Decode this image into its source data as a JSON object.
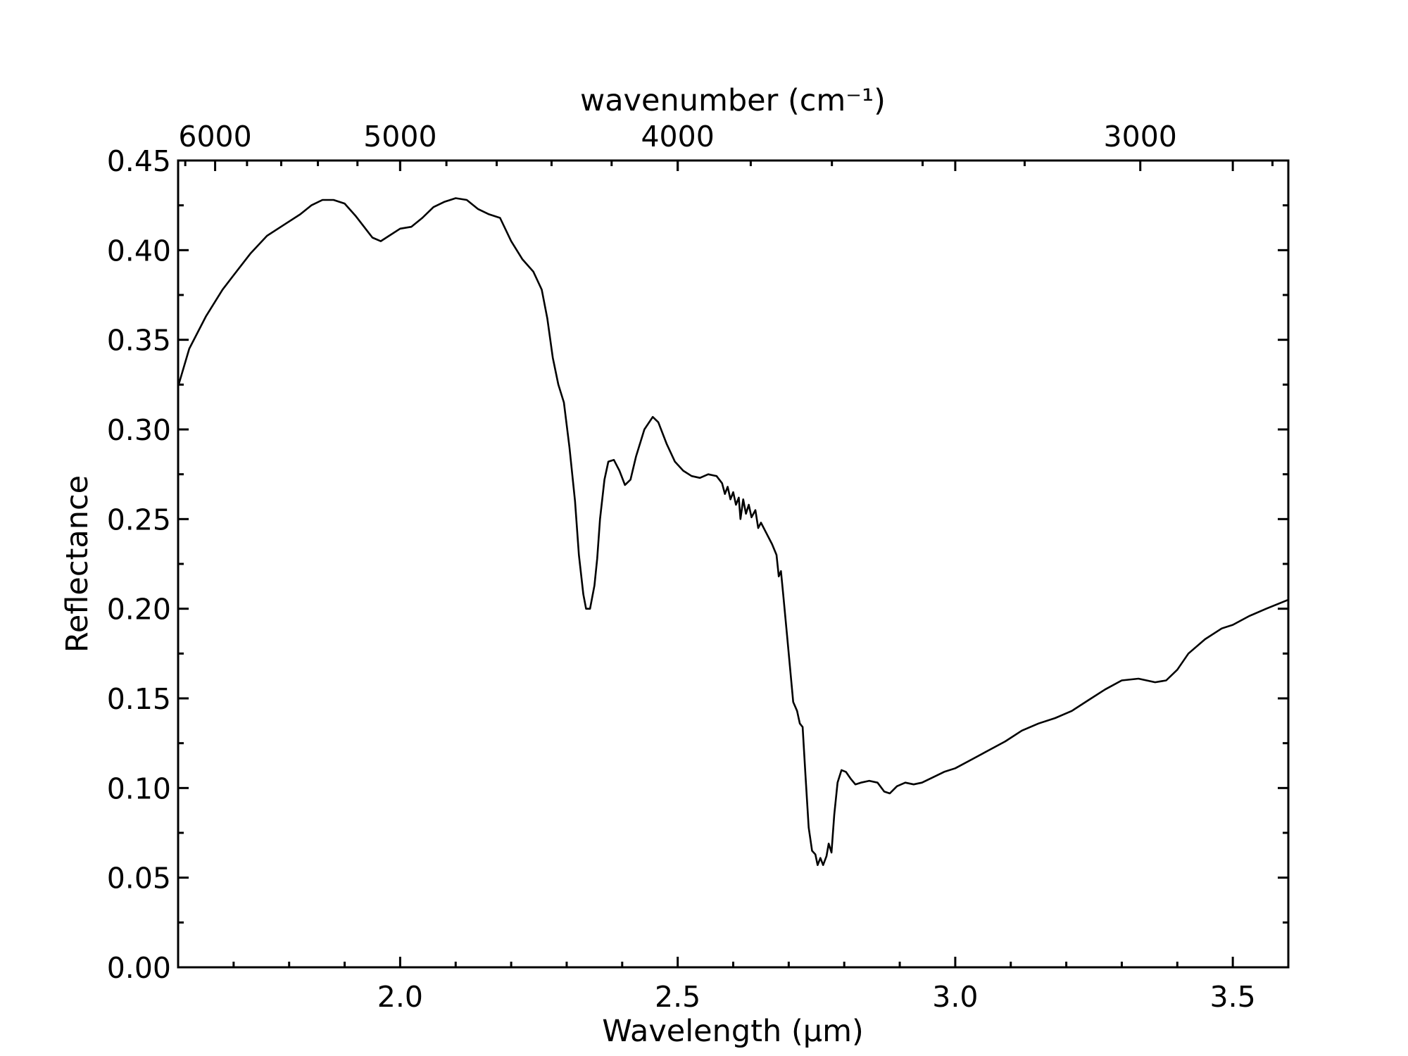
{
  "chart_data": {
    "type": "line",
    "title": "",
    "xlabel": "Wavelength (μm)",
    "ylabel": "Reflectance",
    "top_xlabel": "wavenumber (cm⁻¹)",
    "xlim": [
      1.6,
      3.6
    ],
    "ylim": [
      0.0,
      0.45
    ],
    "grid": false,
    "x_ticks": [
      {
        "value": 2.0,
        "label": "2.0"
      },
      {
        "value": 2.5,
        "label": "2.5"
      },
      {
        "value": 3.0,
        "label": "3.0"
      },
      {
        "value": 3.5,
        "label": "3.5"
      }
    ],
    "y_ticks": [
      {
        "value": 0.0,
        "label": "0.00"
      },
      {
        "value": 0.05,
        "label": "0.05"
      },
      {
        "value": 0.1,
        "label": "0.10"
      },
      {
        "value": 0.15,
        "label": "0.15"
      },
      {
        "value": 0.2,
        "label": "0.20"
      },
      {
        "value": 0.25,
        "label": "0.25"
      },
      {
        "value": 0.3,
        "label": "0.30"
      },
      {
        "value": 0.35,
        "label": "0.35"
      },
      {
        "value": 0.4,
        "label": "0.40"
      },
      {
        "value": 0.45,
        "label": "0.45"
      }
    ],
    "top_ticks": [
      {
        "value": 6000,
        "label": "6000"
      },
      {
        "value": 5000,
        "label": "5000"
      },
      {
        "value": 4000,
        "label": "4000"
      },
      {
        "value": 3000,
        "label": "3000"
      }
    ],
    "series": [
      {
        "color": "#000000",
        "points": [
          [
            1.6,
            0.324
          ],
          [
            1.62,
            0.345
          ],
          [
            1.65,
            0.363
          ],
          [
            1.68,
            0.378
          ],
          [
            1.7,
            0.386
          ],
          [
            1.73,
            0.398
          ],
          [
            1.76,
            0.408
          ],
          [
            1.79,
            0.414
          ],
          [
            1.82,
            0.42
          ],
          [
            1.84,
            0.425
          ],
          [
            1.86,
            0.428
          ],
          [
            1.88,
            0.428
          ],
          [
            1.9,
            0.426
          ],
          [
            1.92,
            0.419
          ],
          [
            1.94,
            0.411
          ],
          [
            1.95,
            0.407
          ],
          [
            1.965,
            0.405
          ],
          [
            1.98,
            0.408
          ],
          [
            2.0,
            0.412
          ],
          [
            2.02,
            0.413
          ],
          [
            2.04,
            0.418
          ],
          [
            2.06,
            0.424
          ],
          [
            2.08,
            0.427
          ],
          [
            2.1,
            0.429
          ],
          [
            2.12,
            0.428
          ],
          [
            2.14,
            0.423
          ],
          [
            2.16,
            0.42
          ],
          [
            2.18,
            0.418
          ],
          [
            2.2,
            0.405
          ],
          [
            2.22,
            0.395
          ],
          [
            2.24,
            0.388
          ],
          [
            2.255,
            0.378
          ],
          [
            2.265,
            0.362
          ],
          [
            2.275,
            0.34
          ],
          [
            2.285,
            0.325
          ],
          [
            2.295,
            0.315
          ],
          [
            2.305,
            0.29
          ],
          [
            2.315,
            0.26
          ],
          [
            2.322,
            0.23
          ],
          [
            2.33,
            0.208
          ],
          [
            2.335,
            0.2
          ],
          [
            2.342,
            0.2
          ],
          [
            2.35,
            0.213
          ],
          [
            2.355,
            0.228
          ],
          [
            2.36,
            0.25
          ],
          [
            2.368,
            0.272
          ],
          [
            2.375,
            0.282
          ],
          [
            2.385,
            0.283
          ],
          [
            2.395,
            0.277
          ],
          [
            2.405,
            0.269
          ],
          [
            2.415,
            0.272
          ],
          [
            2.425,
            0.285
          ],
          [
            2.44,
            0.3
          ],
          [
            2.455,
            0.307
          ],
          [
            2.465,
            0.304
          ],
          [
            2.48,
            0.292
          ],
          [
            2.495,
            0.282
          ],
          [
            2.51,
            0.277
          ],
          [
            2.525,
            0.274
          ],
          [
            2.54,
            0.273
          ],
          [
            2.555,
            0.275
          ],
          [
            2.57,
            0.274
          ],
          [
            2.58,
            0.27
          ],
          [
            2.585,
            0.264
          ],
          [
            2.59,
            0.268
          ],
          [
            2.595,
            0.261
          ],
          [
            2.6,
            0.265
          ],
          [
            2.605,
            0.258
          ],
          [
            2.61,
            0.262
          ],
          [
            2.613,
            0.25
          ],
          [
            2.618,
            0.261
          ],
          [
            2.623,
            0.253
          ],
          [
            2.628,
            0.258
          ],
          [
            2.633,
            0.251
          ],
          [
            2.64,
            0.255
          ],
          [
            2.645,
            0.245
          ],
          [
            2.65,
            0.248
          ],
          [
            2.66,
            0.242
          ],
          [
            2.67,
            0.236
          ],
          [
            2.678,
            0.23
          ],
          [
            2.682,
            0.218
          ],
          [
            2.686,
            0.221
          ],
          [
            2.69,
            0.208
          ],
          [
            2.697,
            0.185
          ],
          [
            2.703,
            0.165
          ],
          [
            2.708,
            0.148
          ],
          [
            2.715,
            0.143
          ],
          [
            2.72,
            0.136
          ],
          [
            2.725,
            0.134
          ],
          [
            2.73,
            0.108
          ],
          [
            2.736,
            0.078
          ],
          [
            2.742,
            0.065
          ],
          [
            2.748,
            0.063
          ],
          [
            2.752,
            0.057
          ],
          [
            2.757,
            0.061
          ],
          [
            2.762,
            0.057
          ],
          [
            2.768,
            0.062
          ],
          [
            2.772,
            0.069
          ],
          [
            2.777,
            0.064
          ],
          [
            2.782,
            0.085
          ],
          [
            2.788,
            0.103
          ],
          [
            2.795,
            0.11
          ],
          [
            2.803,
            0.109
          ],
          [
            2.812,
            0.105
          ],
          [
            2.82,
            0.102
          ],
          [
            2.83,
            0.103
          ],
          [
            2.845,
            0.104
          ],
          [
            2.86,
            0.103
          ],
          [
            2.872,
            0.098
          ],
          [
            2.882,
            0.097
          ],
          [
            2.895,
            0.101
          ],
          [
            2.91,
            0.103
          ],
          [
            2.925,
            0.102
          ],
          [
            2.94,
            0.103
          ],
          [
            2.96,
            0.106
          ],
          [
            2.98,
            0.109
          ],
          [
            3.0,
            0.111
          ],
          [
            3.03,
            0.116
          ],
          [
            3.06,
            0.121
          ],
          [
            3.09,
            0.126
          ],
          [
            3.12,
            0.132
          ],
          [
            3.15,
            0.136
          ],
          [
            3.18,
            0.139
          ],
          [
            3.21,
            0.143
          ],
          [
            3.24,
            0.149
          ],
          [
            3.27,
            0.155
          ],
          [
            3.3,
            0.16
          ],
          [
            3.33,
            0.161
          ],
          [
            3.36,
            0.159
          ],
          [
            3.38,
            0.16
          ],
          [
            3.4,
            0.166
          ],
          [
            3.42,
            0.175
          ],
          [
            3.45,
            0.183
          ],
          [
            3.48,
            0.189
          ],
          [
            3.5,
            0.191
          ],
          [
            3.53,
            0.196
          ],
          [
            3.56,
            0.2
          ],
          [
            3.6,
            0.205
          ]
        ]
      }
    ]
  }
}
